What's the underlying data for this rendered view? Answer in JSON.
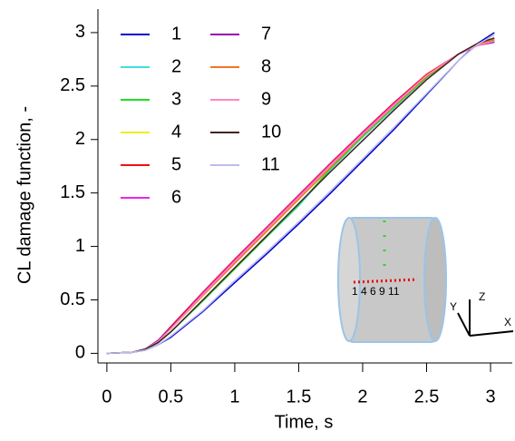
{
  "chart_data": {
    "type": "line",
    "xlabel": "Time, s",
    "ylabel": "CL damage function, -",
    "x": [
      0,
      0.2,
      0.3,
      0.4,
      0.5,
      0.75,
      1,
      1.25,
      1.5,
      1.75,
      2,
      2.25,
      2.5,
      2.75,
      2.9,
      3.03
    ],
    "series": [
      {
        "name": "1",
        "color": "#0000cc",
        "values": [
          0,
          0.01,
          0.03,
          0.08,
          0.15,
          0.39,
          0.66,
          0.93,
          1.21,
          1.5,
          1.8,
          2.1,
          2.42,
          2.74,
          2.9,
          3.0
        ]
      },
      {
        "name": "2",
        "color": "#40e0e0",
        "values": [
          0,
          0.01,
          0.04,
          0.1,
          0.2,
          0.49,
          0.79,
          1.09,
          1.38,
          1.72,
          2.02,
          2.3,
          2.58,
          2.8,
          2.89,
          2.93
        ]
      },
      {
        "name": "3",
        "color": "#22dd22",
        "values": [
          0,
          0.01,
          0.04,
          0.1,
          0.2,
          0.49,
          0.79,
          1.09,
          1.39,
          1.73,
          2.03,
          2.31,
          2.58,
          2.8,
          2.89,
          2.93
        ]
      },
      {
        "name": "4",
        "color": "#eeee22",
        "values": [
          0,
          0.01,
          0.04,
          0.11,
          0.23,
          0.54,
          0.85,
          1.15,
          1.45,
          1.76,
          2.05,
          2.33,
          2.6,
          2.8,
          2.88,
          2.92
        ]
      },
      {
        "name": "5",
        "color": "#ee1111",
        "values": [
          0,
          0.01,
          0.04,
          0.12,
          0.25,
          0.57,
          0.88,
          1.18,
          1.48,
          1.78,
          2.07,
          2.35,
          2.61,
          2.8,
          2.88,
          2.92
        ]
      },
      {
        "name": "6",
        "color": "#ee22ee",
        "values": [
          0,
          0.01,
          0.04,
          0.12,
          0.24,
          0.56,
          0.87,
          1.17,
          1.47,
          1.77,
          2.06,
          2.34,
          2.6,
          2.8,
          2.88,
          2.92
        ]
      },
      {
        "name": "7",
        "color": "#9900aa",
        "values": [
          0,
          0.01,
          0.04,
          0.12,
          0.24,
          0.55,
          0.86,
          1.16,
          1.46,
          1.76,
          2.05,
          2.33,
          2.6,
          2.8,
          2.88,
          2.91
        ]
      },
      {
        "name": "8",
        "color": "#ee7722",
        "values": [
          0,
          0.01,
          0.04,
          0.11,
          0.23,
          0.54,
          0.84,
          1.14,
          1.44,
          1.74,
          2.04,
          2.32,
          2.59,
          2.8,
          2.89,
          2.94
        ]
      },
      {
        "name": "9",
        "color": "#ff88bb",
        "values": [
          0,
          0.01,
          0.04,
          0.11,
          0.23,
          0.55,
          0.86,
          1.16,
          1.46,
          1.76,
          2.05,
          2.33,
          2.6,
          2.8,
          2.88,
          2.92
        ]
      },
      {
        "name": "10",
        "color": "#442222",
        "values": [
          0,
          0.01,
          0.04,
          0.1,
          0.2,
          0.5,
          0.8,
          1.1,
          1.4,
          1.7,
          1.99,
          2.28,
          2.56,
          2.8,
          2.9,
          2.95
        ]
      },
      {
        "name": "11",
        "color": "#bbbbee",
        "values": [
          0,
          0.01,
          0.03,
          0.08,
          0.16,
          0.4,
          0.68,
          0.95,
          1.23,
          1.52,
          1.82,
          2.12,
          2.43,
          2.74,
          2.89,
          2.98
        ]
      }
    ],
    "xlim": [
      -0.07,
      3.17
    ],
    "ylim": [
      -0.09,
      3.22
    ],
    "xticks": [
      0,
      0.5,
      1,
      1.5,
      2,
      2.5,
      3
    ],
    "yticks": [
      0,
      0.5,
      1,
      1.5,
      2,
      2.5,
      3
    ],
    "inset_labels": "1 4 6 9 11",
    "axis_triad": [
      "X",
      "Y",
      "Z"
    ]
  }
}
